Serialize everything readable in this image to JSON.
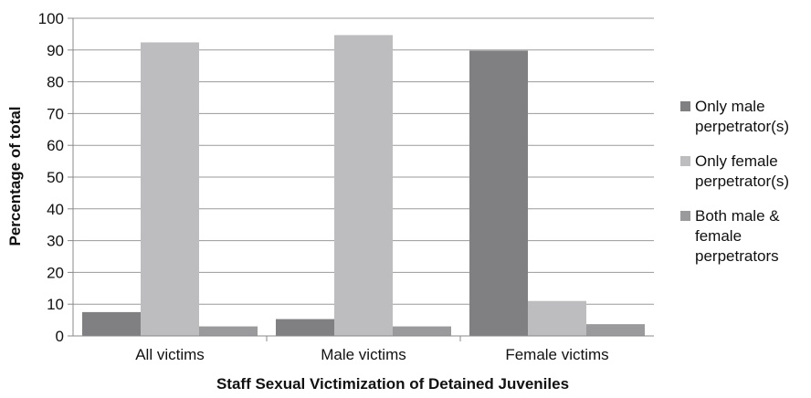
{
  "chart_data": {
    "type": "bar",
    "xlabel": "Staff Sexual Victimization of Detained Juveniles",
    "ylabel": "Percentage of total",
    "ylim": [
      0,
      100
    ],
    "yticks": [
      0,
      10,
      20,
      30,
      40,
      50,
      60,
      70,
      80,
      90,
      100
    ],
    "grid": true,
    "legend_placement": "right",
    "categories": [
      "All victims",
      "Male victims",
      "Female victims"
    ],
    "series": [
      {
        "name": "Only male\nperpetrator(s)",
        "color": "#808083",
        "values": [
          7.5,
          5.3,
          89.8
        ]
      },
      {
        "name": "Only female\nperpetrator(s)",
        "color": "#bdbdbf",
        "values": [
          92.4,
          94.7,
          11.0
        ]
      },
      {
        "name": "Both male &\nfemale\nperpetrators",
        "color": "#9a9a9c",
        "values": [
          3.0,
          3.0,
          3.7
        ]
      }
    ]
  }
}
